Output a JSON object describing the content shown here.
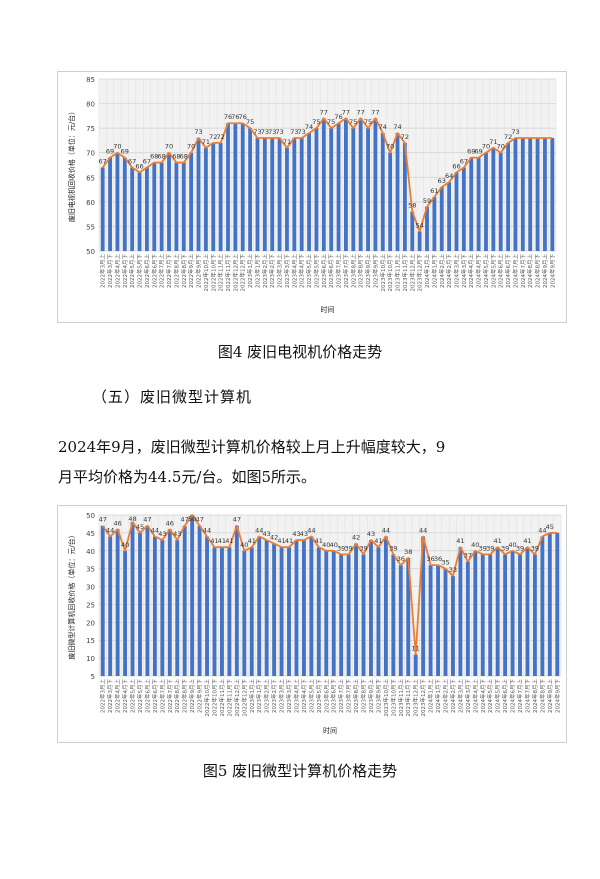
{
  "figure4": {
    "caption": "图4  废旧电视机价格走势",
    "chart_data": {
      "type": "bar",
      "ylabel": "废旧电视机回收价格（单位：元/台）",
      "xlabel": "时间",
      "ylim": [
        50,
        85
      ],
      "yticks": [
        50,
        55,
        60,
        65,
        70,
        75,
        80,
        85
      ],
      "grid": true,
      "line_overlay": true,
      "categories": [
        "2022年3月上",
        "2022年3月下",
        "2022年4月上",
        "2022年4月下",
        "2022年5月上",
        "2022年5月下",
        "2022年6月上",
        "2022年6月下",
        "2022年7月上",
        "2022年7月下",
        "2022年8月上",
        "2022年8月下",
        "2022年9月上",
        "2022年9月下",
        "2022年10月上",
        "2022年10月下",
        "2022年11月上",
        "2022年11月下",
        "2022年12月上",
        "2022年12月下",
        "2023年1月上",
        "2023年1月下",
        "2023年2月上",
        "2023年2月下",
        "2023年3月上",
        "2023年3月下",
        "2023年4月上",
        "2023年4月下",
        "2023年5月上",
        "2023年5月下",
        "2023年6月上",
        "2023年6月下",
        "2023年7月上",
        "2023年7月下",
        "2023年8月上",
        "2023年8月下",
        "2023年9月上",
        "2023年9月下",
        "2023年10月上",
        "2023年10月下",
        "2023年11月上",
        "2023年11月下",
        "2023年12月上",
        "2023年12月下",
        "2024年1月上",
        "2024年1月下",
        "2024年2月上",
        "2024年2月下",
        "2024年3月上",
        "2024年3月下",
        "2024年4月上",
        "2024年4月下",
        "2024年5月上",
        "2024年5月下",
        "2024年6月上",
        "2024年6月下",
        "2024年7月上",
        "2024年7月下",
        "2024年8月上",
        "2024年8月下",
        "2024年9月上",
        "2024年9月下"
      ],
      "values": [
        67,
        69,
        70,
        69,
        67,
        66,
        67,
        68,
        68,
        70,
        68,
        68,
        70,
        73,
        71,
        72,
        72,
        76,
        76,
        76,
        75,
        73,
        73,
        73,
        73,
        71,
        73,
        73,
        74,
        75,
        77,
        75,
        76,
        77,
        75,
        77,
        75,
        77,
        74,
        70,
        74,
        72,
        58,
        54,
        59,
        61,
        63,
        64,
        66,
        67,
        69,
        69,
        70,
        71,
        70,
        72,
        73,
        73,
        73,
        73,
        73,
        73
      ],
      "labels": [
        "67",
        "69",
        "70",
        "69",
        "67",
        "66",
        "67",
        "68",
        "68",
        "70",
        "68",
        "68",
        "70",
        "73",
        "71",
        "72",
        "72",
        "76",
        "76",
        "76",
        "75",
        "73",
        "73",
        "73",
        "73",
        "71",
        "73",
        "73",
        "74",
        "75",
        "77",
        "75",
        "76",
        "77",
        "75",
        "77",
        "75",
        "77",
        "74",
        "70",
        "74",
        "72",
        "58",
        "54",
        "59",
        "61",
        "63",
        "64",
        "66",
        "67",
        "69",
        "69",
        "70",
        "71",
        "70",
        "72",
        "73",
        "",
        "",
        "",
        "",
        ""
      ],
      "bar_color": "#4472c4",
      "line_color": "#ed7d31"
    }
  },
  "section": {
    "heading": "（五）废旧微型计算机"
  },
  "paragraph": {
    "line1": "2024年9月，废旧微型计算机价格较上月上升幅度较大，9",
    "line2": "月平均价格为44.5元/台。如图5所示。"
  },
  "figure5": {
    "caption": "图5  废旧微型计算机价格走势",
    "chart_data": {
      "type": "bar",
      "ylabel": "废旧微型计算机回收价格（单位：元/台）",
      "xlabel": "时间",
      "ylim": [
        5,
        50
      ],
      "yticks": [
        5,
        10,
        15,
        20,
        25,
        30,
        35,
        40,
        45,
        50
      ],
      "grid": true,
      "line_overlay": true,
      "categories": [
        "2022年3月上",
        "2022年3月下",
        "2022年4月上",
        "2022年4月下",
        "2022年5月上",
        "2022年5月下",
        "2022年6月上",
        "2022年6月下",
        "2022年7月上",
        "2022年7月下",
        "2022年8月上",
        "2022年8月下",
        "2022年9月上",
        "2022年9月下",
        "2022年10月上",
        "2022年10月下",
        "2022年11月上",
        "2022年11月下",
        "2022年12月上",
        "2022年12月下",
        "2023年1月上",
        "2023年1月下",
        "2023年2月上",
        "2023年2月下",
        "2023年3月上",
        "2023年3月下",
        "2023年4月上",
        "2023年4月下",
        "2023年5月上",
        "2023年5月下",
        "2023年6月上",
        "2023年6月下",
        "2023年7月上",
        "2023年7月下",
        "2023年8月上",
        "2023年8月下",
        "2023年9月上",
        "2023年9月下",
        "2023年10月上",
        "2023年10月下",
        "2023年11月上",
        "2023年11月下",
        "2023年12月上",
        "2023年12月下",
        "2024年1月上",
        "2024年1月下",
        "2024年2月上",
        "2024年2月下",
        "2024年3月上",
        "2024年3月下",
        "2024年4月上",
        "2024年4月下",
        "2024年5月上",
        "2024年5月下",
        "2024年6月上",
        "2024年6月下",
        "2024年7月上",
        "2024年7月下",
        "2024年8月上",
        "2024年8月下",
        "2024年9月上",
        "2024年9月下"
      ],
      "values": [
        47,
        44,
        46,
        40,
        48,
        45,
        47,
        44,
        43,
        46,
        43,
        47,
        50,
        47,
        44,
        41,
        41,
        41,
        47,
        40,
        41,
        44,
        43,
        42,
        41,
        41,
        43,
        43,
        44,
        41,
        40,
        40,
        39,
        39,
        42,
        39,
        43,
        41,
        44,
        39,
        36,
        38,
        11,
        44,
        36,
        36,
        35,
        33,
        41,
        37,
        40,
        39,
        39,
        41,
        39,
        40,
        39,
        41,
        39,
        44,
        45,
        45
      ],
      "labels": [
        "47",
        "44",
        "46",
        "40",
        "48",
        "45",
        "47",
        "44",
        "43",
        "46",
        "43",
        "47",
        "50",
        "47",
        "44",
        "41",
        "41",
        "41",
        "47",
        "40",
        "41",
        "44",
        "43",
        "42",
        "41",
        "41",
        "43",
        "43",
        "44",
        "41",
        "40",
        "40",
        "39",
        "39",
        "42",
        "39",
        "43",
        "41",
        "44",
        "39",
        "36",
        "38",
        "11",
        "44",
        "36",
        "36",
        "35",
        "33",
        "41",
        "37",
        "40",
        "39",
        "39",
        "41",
        "39",
        "40",
        "39",
        "41",
        "39",
        "44",
        "45",
        ""
      ],
      "bar_color": "#4472c4",
      "line_color": "#ed7d31"
    }
  }
}
